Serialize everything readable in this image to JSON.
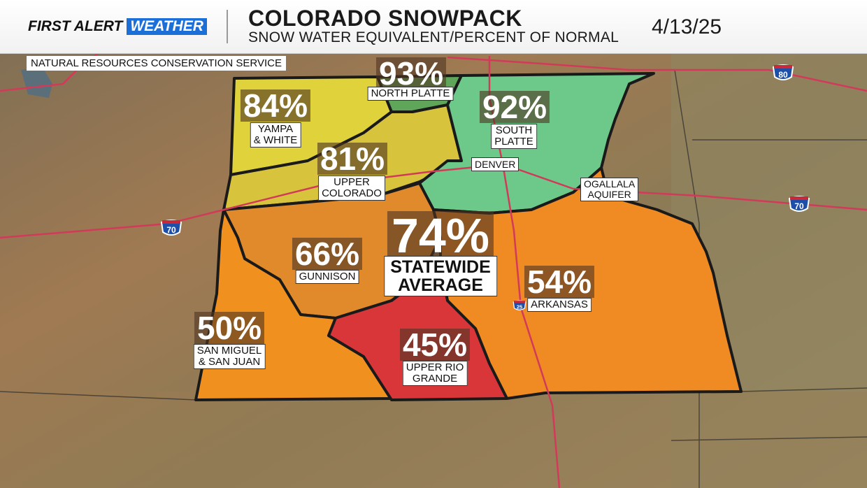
{
  "header": {
    "brand_first": "FIRST ALERT",
    "brand_weather": "WEATHER",
    "title": "COLORADO SNOWPACK",
    "subtitle": "SNOW WATER EQUIVALENT/PERCENT OF NORMAL",
    "date": "4/13/25"
  },
  "source": "NATURAL RESOURCES CONSERVATION SERVICE",
  "basins": [
    {
      "name": "NORTH PLATTE",
      "percent": "93%",
      "color": "#5fa55a"
    },
    {
      "name": "YAMPA\n& WHITE",
      "percent": "84%",
      "color": "#e0d23a"
    },
    {
      "name": "SOUTH\nPLATTE",
      "percent": "92%",
      "color": "#6cc98a"
    },
    {
      "name": "UPPER\nCOLORADO",
      "percent": "81%",
      "color": "#d7c43c"
    },
    {
      "name": "GUNNISON",
      "percent": "66%",
      "color": "#e08a2c"
    },
    {
      "name": "ARKANSAS",
      "percent": "54%",
      "color": "#f08a22"
    },
    {
      "name": "SAN MIGUEL\n& SAN JUAN",
      "percent": "50%",
      "color": "#f0901e"
    },
    {
      "name": "UPPER RIO\nGRANDE",
      "percent": "45%",
      "color": "#d9363a"
    }
  ],
  "statewide": {
    "percent": "74%",
    "label": "STATEWIDE\nAVERAGE"
  },
  "cities": {
    "denver": "DENVER",
    "ogallala": "OGALLALA\nAQUIFER"
  },
  "interstates": [
    "80",
    "70",
    "70",
    "25"
  ]
}
